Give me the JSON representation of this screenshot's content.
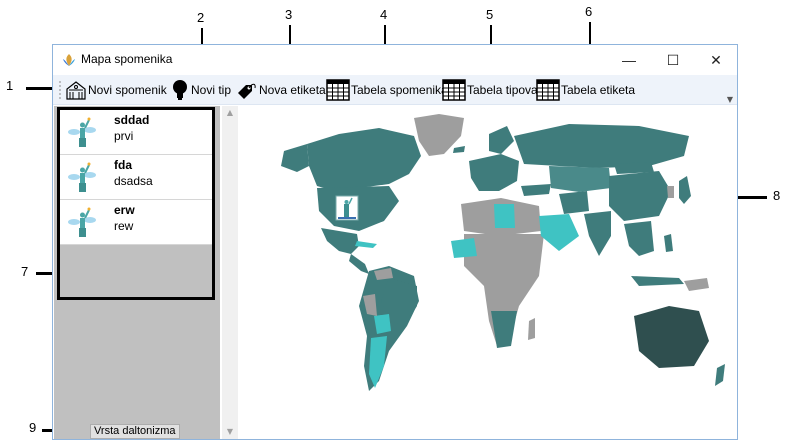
{
  "window": {
    "title": "Mapa spomenika",
    "controls": {
      "minimize": "—",
      "maximize": "☐",
      "close": "✕"
    }
  },
  "toolbar": {
    "items": [
      {
        "label": "Novi spomenik",
        "icon": "monument-building-icon"
      },
      {
        "label": "Novi tip",
        "icon": "lightbulb-icon"
      },
      {
        "label": "Nova etiketa",
        "icon": "tag-icon"
      },
      {
        "label": "Tabela spomenika",
        "icon": "table-icon"
      },
      {
        "label": "Tabela tipova",
        "icon": "table-icon"
      },
      {
        "label": "Tabela etiketa",
        "icon": "table-icon"
      }
    ]
  },
  "monument_list": {
    "items": [
      {
        "name": "sddad",
        "description": "prvi",
        "icon": "statue-of-liberty-icon"
      },
      {
        "name": "fda",
        "description": "dsadsa",
        "icon": "statue-of-liberty-icon"
      },
      {
        "name": "erw",
        "description": "rew",
        "icon": "statue-of-liberty-icon"
      }
    ]
  },
  "colorblind_button": {
    "label": "Vrsta daltonizma"
  },
  "callouts": [
    "1",
    "2",
    "3",
    "4",
    "5",
    "6",
    "7",
    "8",
    "9"
  ],
  "colors": {
    "map_teal": "#3f7c7c",
    "map_dark": "#2f4f4f",
    "map_cyan": "#3fc3c3",
    "map_gray": "#9e9e9e",
    "panel_gray": "#c0c0c0",
    "toolbar_bg": "#eef3fa"
  }
}
